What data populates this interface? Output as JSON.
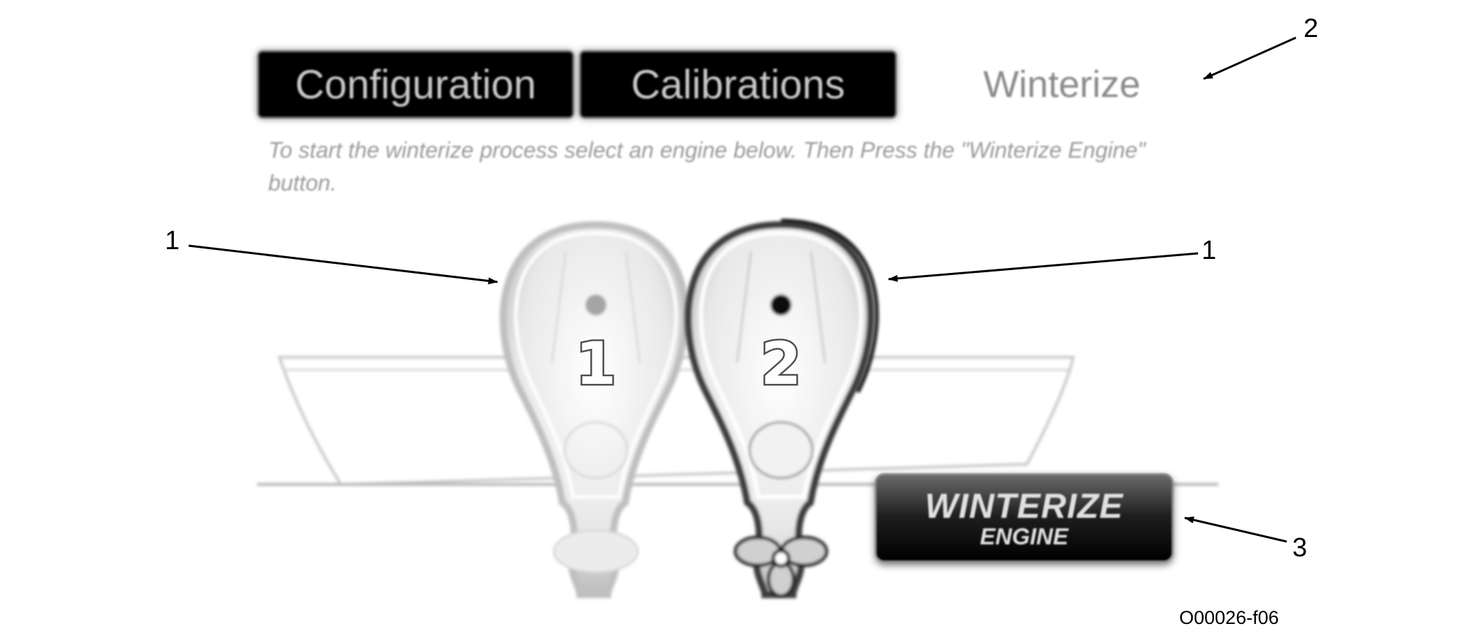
{
  "tabs": [
    {
      "label": "Configuration"
    },
    {
      "label": "Calibrations"
    },
    {
      "label": "Winterize"
    }
  ],
  "instruction": "To start the winterize process select an engine below. Then Press the \"Winterize Engine\" button.",
  "engines": [
    {
      "label": "1"
    },
    {
      "label": "2"
    }
  ],
  "winterize_button": {
    "line1": "WINTERIZE",
    "line2": "ENGINE"
  },
  "callouts": {
    "engine_left": "1",
    "engine_right": "1",
    "tab": "2",
    "button": "3"
  },
  "figure_id": "O00026-f06"
}
